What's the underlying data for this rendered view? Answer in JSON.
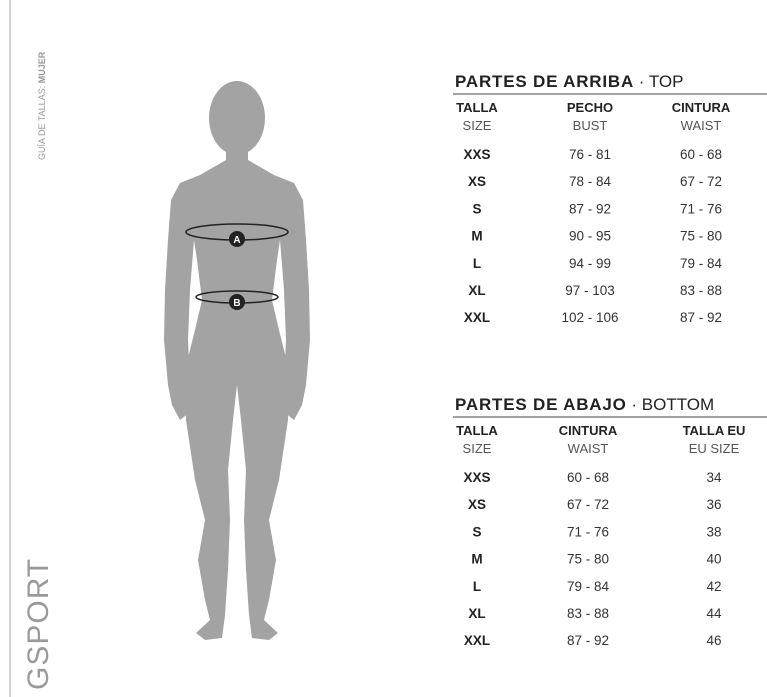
{
  "sidebar": {
    "guide_label": "GUÍA DE TALLAS:",
    "guide_bold": "MUJER",
    "brand": "GSPORT"
  },
  "figure": {
    "markers": [
      "A",
      "B"
    ]
  },
  "tables": [
    {
      "title_bold": "PARTES DE ARRIBA",
      "separator": "·",
      "title_light": "TOP",
      "headers": [
        [
          "TALLA",
          "SIZE"
        ],
        [
          "PECHO",
          "BUST"
        ],
        [
          "CINTURA",
          "WAIST"
        ]
      ],
      "rows": [
        [
          "XXS",
          "76 - 81",
          "60 - 68"
        ],
        [
          "XS",
          "78 - 84",
          "67 - 72"
        ],
        [
          "S",
          "87 - 92",
          "71 - 76"
        ],
        [
          "M",
          "90 - 95",
          "75 - 80"
        ],
        [
          "L",
          "94 - 99",
          "79 - 84"
        ],
        [
          "XL",
          "97 - 103",
          "83 - 88"
        ],
        [
          "XXL",
          "102 - 106",
          "87 - 92"
        ]
      ]
    },
    {
      "title_bold": "PARTES DE ABAJO",
      "separator": "·",
      "title_light": "BOTTOM",
      "headers": [
        [
          "TALLA",
          "SIZE"
        ],
        [
          "CINTURA",
          "WAIST"
        ],
        [
          "TALLA EU",
          "EU SIZE"
        ]
      ],
      "rows": [
        [
          "XXS",
          "60 - 68",
          "34"
        ],
        [
          "XS",
          "67 - 72",
          "36"
        ],
        [
          "S",
          "71 - 76",
          "38"
        ],
        [
          "M",
          "75 - 80",
          "40"
        ],
        [
          "L",
          "79 - 84",
          "42"
        ],
        [
          "XL",
          "83 - 88",
          "44"
        ],
        [
          "XXL",
          "87 - 92",
          "46"
        ]
      ]
    }
  ]
}
